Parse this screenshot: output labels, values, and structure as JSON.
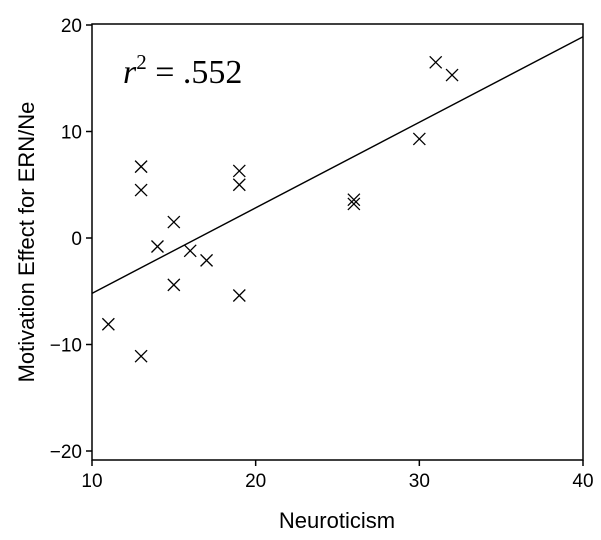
{
  "chart_data": {
    "type": "scatter",
    "title": "",
    "xlabel": "Neuroticism",
    "ylabel": "Motivation Effect for ERN/Ne",
    "xlim": [
      10,
      40
    ],
    "ylim": [
      -21,
      20
    ],
    "x_ticks": [
      10,
      20,
      30,
      40
    ],
    "y_ticks": [
      20,
      10,
      0,
      -10,
      -20
    ],
    "x_tick_labels": [
      "10",
      "20",
      "30",
      "40"
    ],
    "y_tick_labels": [
      "20",
      "10",
      "0",
      "−10",
      "−20"
    ],
    "grid": false,
    "legend": "none",
    "marker": "x",
    "color": "#000000",
    "annotation": {
      "var": "r",
      "exp": "2",
      "rest": " = .552"
    },
    "points": [
      {
        "x": 11,
        "y": -8.1
      },
      {
        "x": 13,
        "y": 6.7
      },
      {
        "x": 13,
        "y": 4.5
      },
      {
        "x": 13,
        "y": -11.1
      },
      {
        "x": 14,
        "y": -0.8
      },
      {
        "x": 15,
        "y": 1.5
      },
      {
        "x": 15,
        "y": -4.4
      },
      {
        "x": 16,
        "y": -1.2
      },
      {
        "x": 17,
        "y": -2.1
      },
      {
        "x": 19,
        "y": 6.3
      },
      {
        "x": 19,
        "y": 5.0
      },
      {
        "x": 19,
        "y": -5.4
      },
      {
        "x": 26,
        "y": 3.6
      },
      {
        "x": 26,
        "y": 3.2
      },
      {
        "x": 30,
        "y": 9.3
      },
      {
        "x": 31,
        "y": 16.5
      },
      {
        "x": 32,
        "y": 15.3
      }
    ],
    "regression_line": {
      "x": [
        10,
        40
      ],
      "y": [
        -5.2,
        18.9
      ]
    }
  }
}
